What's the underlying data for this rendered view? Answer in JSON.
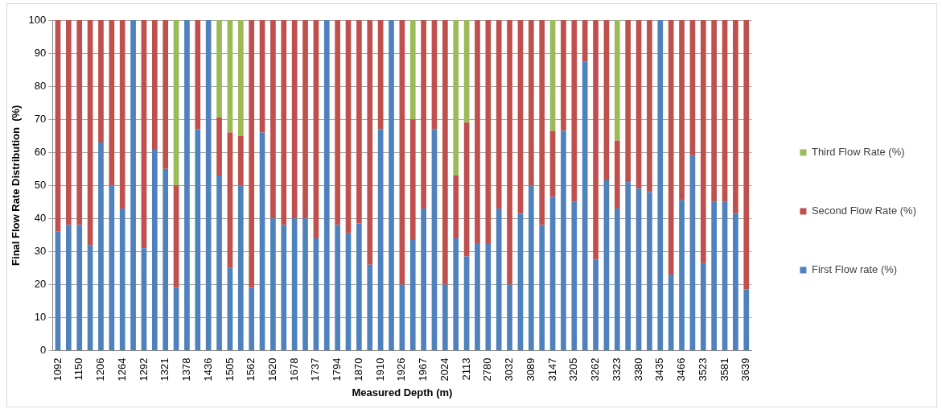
{
  "chart_data": {
    "type": "bar",
    "stacked": true,
    "xlabel": "Measured Depth (m)",
    "ylabel": "Final Flow Rate Distribution  (%)",
    "categories": [
      "1092",
      null,
      "1150",
      null,
      "1206",
      null,
      "1264",
      null,
      "1292",
      null,
      "1321",
      null,
      "1378",
      null,
      "1436",
      null,
      "1505",
      null,
      "1562",
      null,
      "1620",
      null,
      "1678",
      null,
      "1737",
      null,
      "1794",
      null,
      "1870",
      null,
      "1910",
      null,
      "1926",
      null,
      "1967",
      null,
      "2024",
      null,
      "2113",
      null,
      "2780",
      null,
      "3032",
      null,
      "3089",
      null,
      "3147",
      null,
      "3205",
      null,
      "3262",
      null,
      "3323",
      null,
      "3380",
      null,
      "3435",
      null,
      "3466",
      null,
      "3523",
      null,
      "3581",
      null,
      "3639"
    ],
    "series": [
      {
        "name": "First Flow rate (%)",
        "color": "#4f81bd",
        "values": [
          36,
          38,
          38,
          32,
          63,
          50,
          43,
          100,
          31,
          61,
          55,
          19,
          100,
          67,
          100,
          53,
          25,
          50,
          19,
          66,
          40,
          38,
          40,
          40,
          34,
          100,
          38,
          35.5,
          38.5,
          26,
          67,
          100,
          20,
          33.5,
          43,
          67,
          20,
          34,
          28.5,
          32.5,
          32.5,
          43,
          20,
          41.5,
          50,
          38,
          46.5,
          66.5,
          45,
          87.5,
          27.5,
          51.5,
          43,
          51,
          49,
          48,
          100,
          23,
          45.5,
          59,
          26.5,
          45,
          45,
          41.5,
          18.5
        ]
      },
      {
        "name": "Second Flow Rate (%)",
        "color": "#c0504d",
        "values": [
          64,
          62,
          62,
          68,
          37,
          50,
          57,
          0,
          69,
          39,
          45,
          31,
          0,
          33,
          0,
          17.5,
          41,
          15,
          81,
          34,
          60,
          62,
          60,
          60,
          66,
          0,
          62,
          64.5,
          61.5,
          74,
          33,
          0,
          80,
          36.5,
          57,
          33,
          80,
          19,
          40.5,
          67.5,
          67.5,
          57,
          80,
          58.5,
          50,
          62,
          20,
          33.5,
          55,
          12.5,
          72.5,
          48.5,
          20.5,
          49,
          51,
          52,
          0,
          77,
          54.5,
          41,
          73.5,
          55,
          55,
          58.5,
          81.5
        ]
      },
      {
        "name": "Third Flow Rate (%)",
        "color": "#9bbb59",
        "values": [
          0,
          0,
          0,
          0,
          0,
          0,
          0,
          0,
          0,
          0,
          0,
          50,
          0,
          0,
          0,
          29.5,
          34,
          35,
          0,
          0,
          0,
          0,
          0,
          0,
          0,
          0,
          0,
          0,
          0,
          0,
          0,
          0,
          0,
          30,
          0,
          0,
          0,
          47,
          31,
          0,
          0,
          0,
          0,
          0,
          0,
          0,
          33.5,
          0,
          0,
          0,
          0,
          0,
          36.5,
          0,
          0,
          0,
          0,
          0,
          0,
          0,
          0,
          0,
          0,
          0,
          0
        ]
      }
    ],
    "ylim": [
      0,
      100
    ],
    "yticks": [
      0,
      10,
      20,
      30,
      40,
      50,
      60,
      70,
      80,
      90,
      100
    ],
    "grid": "y",
    "legend": "right"
  }
}
